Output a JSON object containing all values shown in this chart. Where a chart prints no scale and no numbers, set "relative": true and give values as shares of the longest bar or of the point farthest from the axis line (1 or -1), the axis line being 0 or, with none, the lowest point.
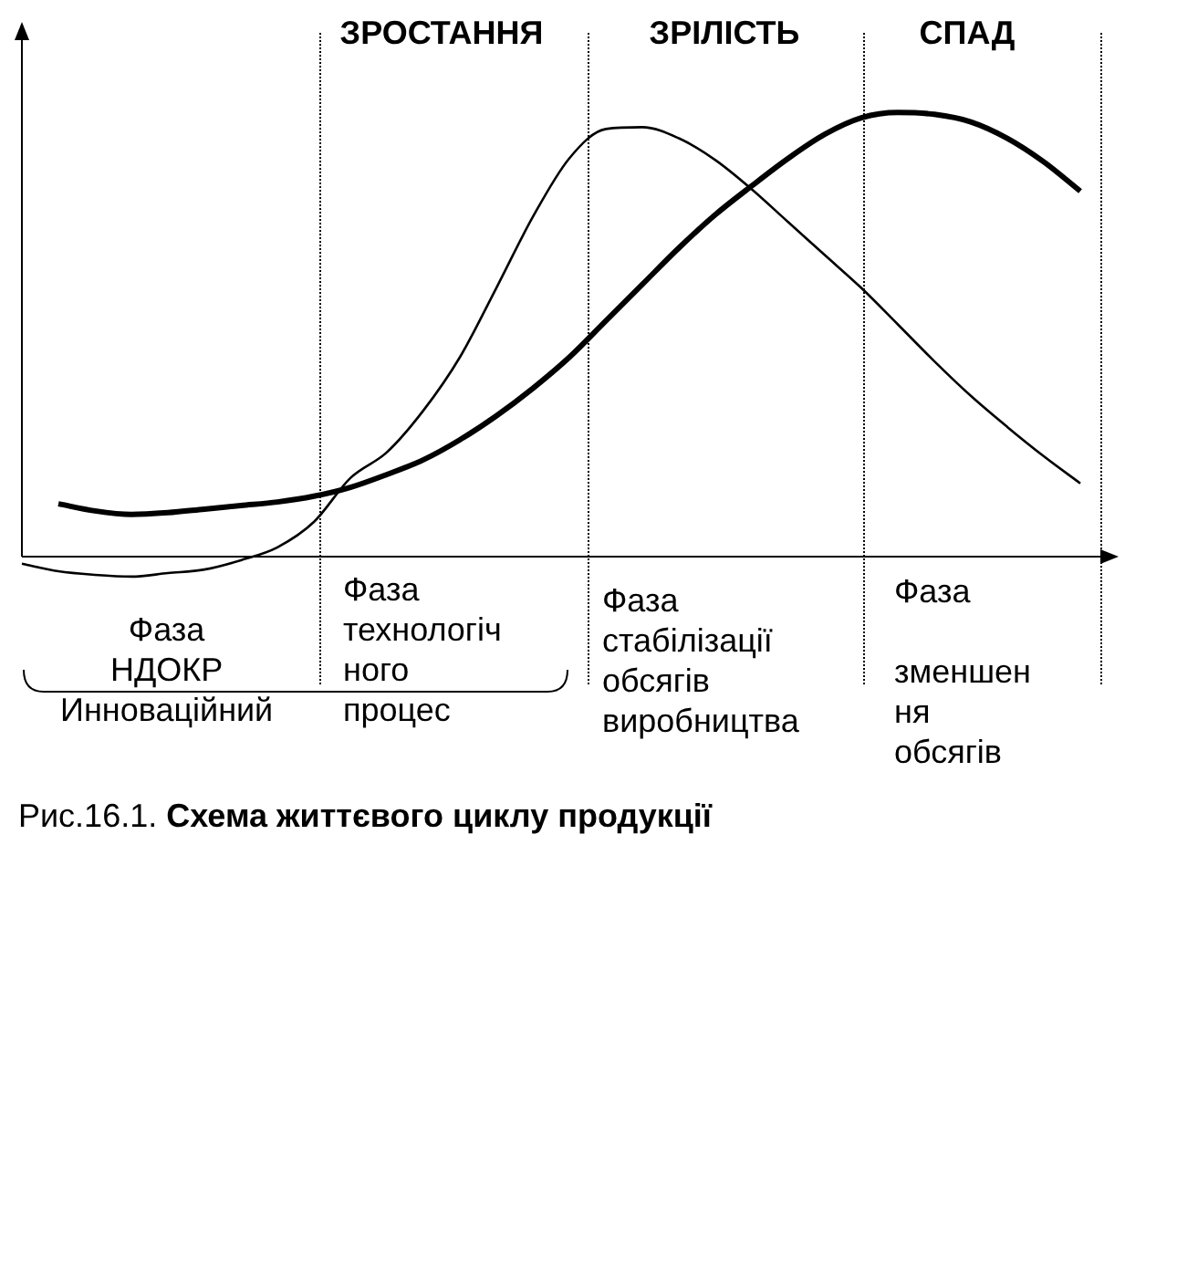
{
  "chart_data": {
    "type": "line",
    "title": "Схема життєвого циклу продукції",
    "relative": true,
    "tick_labels": false,
    "marker": "none",
    "line_style": "solid",
    "categories": [
      null,
      null,
      null,
      null,
      null,
      null,
      null,
      null,
      null,
      null,
      null,
      null,
      null,
      null,
      null,
      null,
      null,
      null,
      null,
      null,
      null,
      null,
      null,
      null,
      null,
      null,
      null,
      null,
      null,
      null,
      null
    ],
    "series": [
      {
        "color": "#000000",
        "values": [
          null,
          0.119,
          0.103,
          0.095,
          0.099,
          0.107,
          0.115,
          0.123,
          0.136,
          0.156,
          0.185,
          0.218,
          0.263,
          0.317,
          0.379,
          0.449,
          0.531,
          0.613,
          0.695,
          0.77,
          0.835,
          0.897,
          0.951,
          0.988,
          1,
          0.996,
          0.979,
          0.942,
          0.889,
          0.823,
          null
        ]
      },
      {
        "color": "#000000",
        "values": [
          -0.016,
          -0.033,
          -0.041,
          -0.045,
          -0.037,
          -0.029,
          -0.008,
          0.021,
          0.078,
          0.177,
          0.235,
          0.329,
          0.449,
          0.605,
          0.765,
          0.897,
          0.963,
          0.967,
          0.942,
          0.893,
          0.827,
          0.753,
          0.679,
          0.605,
          0.523,
          0.44,
          0.362,
          0.292,
          0.226,
          0.165,
          null
        ]
      }
    ],
    "annotations": [
      "ЗРОСТАННЯ",
      "ЗРІЛІСТЬ",
      "СПАД",
      "Фаза\nНДОКР\nИнноваційний",
      "Фаза\nтехнологіч\nного\nпроцес",
      "Фаза\nстабілізації\nобсягів\nвиробництва",
      "Фаза\n\nзменшен\nня\nобсягів",
      "Рис.16.1."
    ]
  }
}
